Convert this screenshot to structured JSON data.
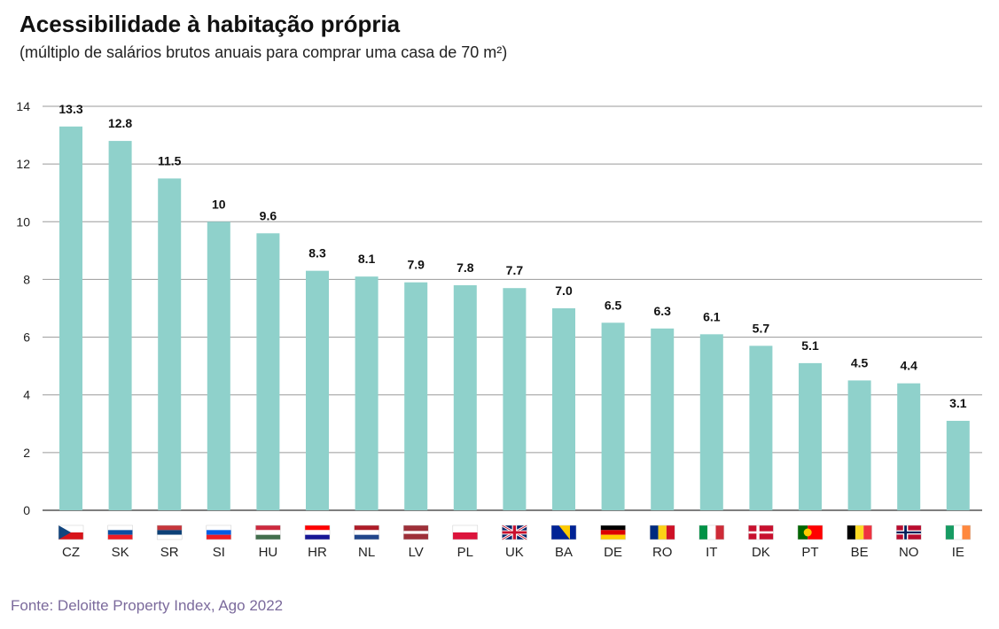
{
  "header": {
    "title": "Acessibilidade à habitação própria",
    "subtitle": "(múltiplo de salários brutos anuais para comprar uma casa de 70 m²)"
  },
  "footer": {
    "source": "Fonte: Deloitte Property Index, Ago 2022"
  },
  "colors": {
    "bar": "#8fd1cb",
    "grid": "#9a9a9a",
    "source_text": "#7b6a9c"
  },
  "chart_data": {
    "type": "bar",
    "categories": [
      "CZ",
      "SK",
      "SR",
      "SI",
      "HU",
      "HR",
      "NL",
      "LV",
      "PL",
      "UK",
      "BA",
      "DE",
      "RO",
      "IT",
      "DK",
      "PT",
      "BE",
      "NO",
      "IE"
    ],
    "values": [
      13.3,
      12.8,
      11.5,
      10,
      9.6,
      8.3,
      8.1,
      7.9,
      7.8,
      7.7,
      7.0,
      6.5,
      6.3,
      6.1,
      5.7,
      5.1,
      4.5,
      4.4,
      3.1
    ],
    "value_labels": [
      "13.3",
      "12.8",
      "11.5",
      "10",
      "9.6",
      "8.3",
      "8.1",
      "7.9",
      "7.8",
      "7.7",
      "7.0",
      "6.5",
      "6.3",
      "6.1",
      "5.7",
      "5.1",
      "4.5",
      "4.4",
      "3.1"
    ],
    "yticks": [
      "0",
      "2",
      "4",
      "6",
      "8",
      "10",
      "12",
      "14"
    ],
    "ylim": [
      0,
      14
    ],
    "grid": true,
    "flags": [
      "czech-flag",
      "slovak-flag",
      "serbian-flag",
      "slovenian-flag",
      "hungarian-flag",
      "croatian-flag",
      "dutch-flag",
      "latvian-flag",
      "polish-flag",
      "uk-flag",
      "bosnian-flag",
      "german-flag",
      "romanian-flag",
      "italian-flag",
      "danish-flag",
      "portuguese-flag",
      "belgian-flag",
      "norwegian-flag",
      "irish-flag"
    ]
  }
}
